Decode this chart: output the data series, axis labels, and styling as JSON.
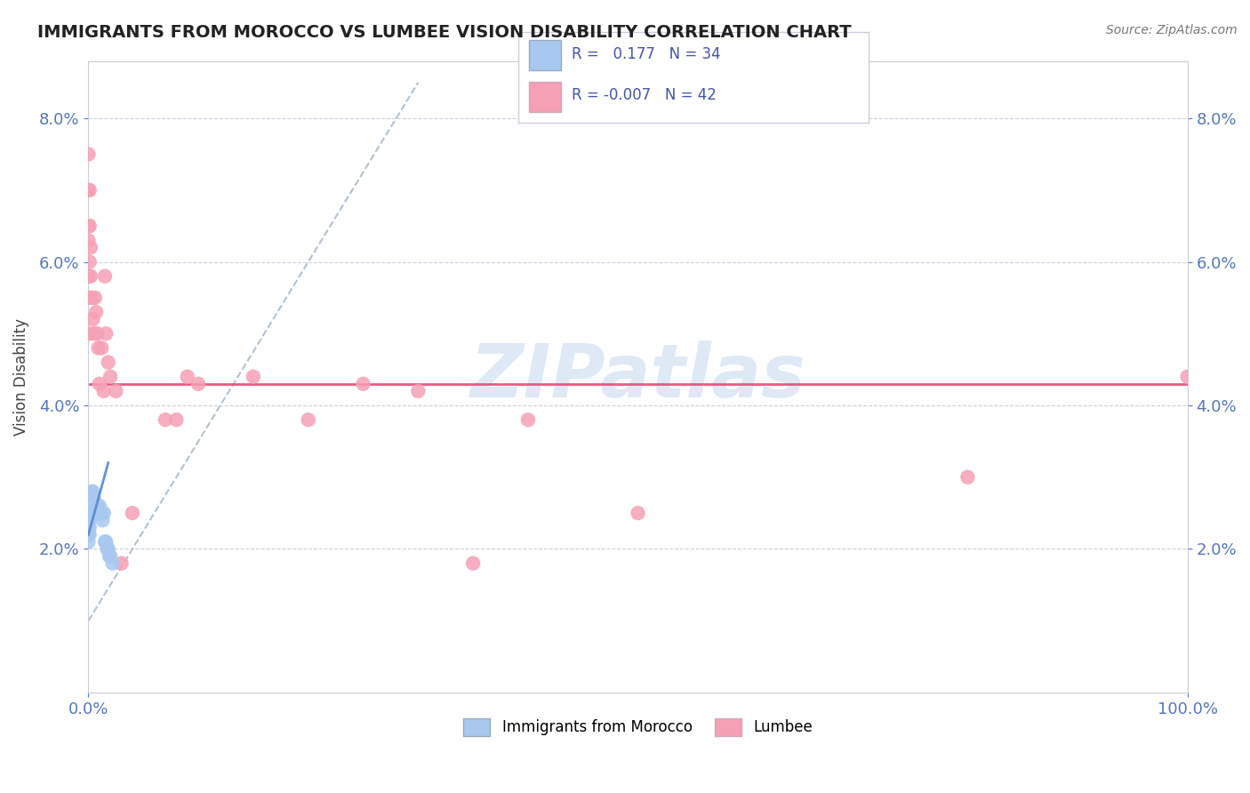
{
  "title": "IMMIGRANTS FROM MOROCCO VS LUMBEE VISION DISABILITY CORRELATION CHART",
  "source": "Source: ZipAtlas.com",
  "ylabel": "Vision Disability",
  "r_morocco": 0.177,
  "n_morocco": 34,
  "r_lumbee": -0.007,
  "n_lumbee": 42,
  "xlim": [
    0.0,
    1.0
  ],
  "ylim": [
    0.0,
    0.088
  ],
  "yticks": [
    0.02,
    0.04,
    0.06,
    0.08
  ],
  "ytick_labels": [
    "2.0%",
    "4.0%",
    "6.0%",
    "8.0%"
  ],
  "color_morocco": "#a8c8f0",
  "color_lumbee": "#f5a0b5",
  "color_trendline_morocco": "#aabbcc",
  "color_trendline_lumbee": "#e8507a",
  "color_morocco_trend_solid": "#5588cc",
  "watermark_text": "ZIPatlas",
  "watermark_color": "#c5d8ee",
  "morocco_x": [
    0.0,
    0.0,
    0.0,
    0.0,
    0.0,
    0.0,
    0.001,
    0.001,
    0.001,
    0.001,
    0.001,
    0.002,
    0.002,
    0.002,
    0.003,
    0.003,
    0.004,
    0.005,
    0.006,
    0.007,
    0.008,
    0.009,
    0.01,
    0.011,
    0.012,
    0.013,
    0.014,
    0.015,
    0.016,
    0.017,
    0.018,
    0.019,
    0.02,
    0.022
  ],
  "morocco_y": [
    0.027,
    0.025,
    0.024,
    0.023,
    0.022,
    0.021,
    0.026,
    0.025,
    0.024,
    0.023,
    0.022,
    0.027,
    0.026,
    0.025,
    0.028,
    0.027,
    0.028,
    0.027,
    0.026,
    0.025,
    0.026,
    0.025,
    0.026,
    0.025,
    0.025,
    0.024,
    0.025,
    0.021,
    0.021,
    0.02,
    0.02,
    0.019,
    0.019,
    0.018
  ],
  "lumbee_x": [
    0.0,
    0.0,
    0.0,
    0.0,
    0.0,
    0.0,
    0.0,
    0.001,
    0.001,
    0.001,
    0.002,
    0.002,
    0.003,
    0.004,
    0.005,
    0.006,
    0.007,
    0.008,
    0.009,
    0.01,
    0.012,
    0.014,
    0.015,
    0.016,
    0.018,
    0.02,
    0.025,
    0.03,
    0.04,
    0.07,
    0.08,
    0.09,
    0.1,
    0.15,
    0.2,
    0.25,
    0.3,
    0.35,
    0.4,
    0.5,
    0.8,
    1.0
  ],
  "lumbee_y": [
    0.075,
    0.07,
    0.065,
    0.063,
    0.058,
    0.055,
    0.05,
    0.07,
    0.065,
    0.06,
    0.062,
    0.058,
    0.055,
    0.052,
    0.05,
    0.055,
    0.053,
    0.05,
    0.048,
    0.043,
    0.048,
    0.042,
    0.058,
    0.05,
    0.046,
    0.044,
    0.042,
    0.018,
    0.025,
    0.038,
    0.038,
    0.044,
    0.043,
    0.044,
    0.038,
    0.043,
    0.042,
    0.018,
    0.038,
    0.025,
    0.03,
    0.044
  ]
}
